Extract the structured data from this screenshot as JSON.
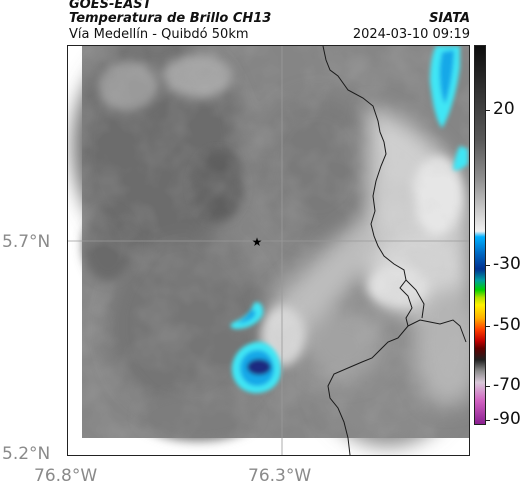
{
  "header": {
    "satellite": "GOES-EAST",
    "product": "Temperatura de Brillo CH13",
    "region": "Vía Medellín - Quibdó 50km",
    "agency": "SIATA",
    "timestamp": "2024-03-10 09:19"
  },
  "map": {
    "lat_ticks": [
      "5.7°N",
      "5.2°N"
    ],
    "lon_ticks": [
      "76.8°W",
      "76.3°W"
    ],
    "marker_icon": "star-icon",
    "colors": {
      "cold_cloud_light": "#3fe6f5",
      "cold_cloud_mid": "#18a8e8",
      "cold_cloud_core": "#1a2c80",
      "border_line": "#1a1a1a"
    }
  },
  "colorbar": {
    "labels": [
      "20",
      "-30",
      "-50",
      "-70",
      "-90"
    ]
  }
}
